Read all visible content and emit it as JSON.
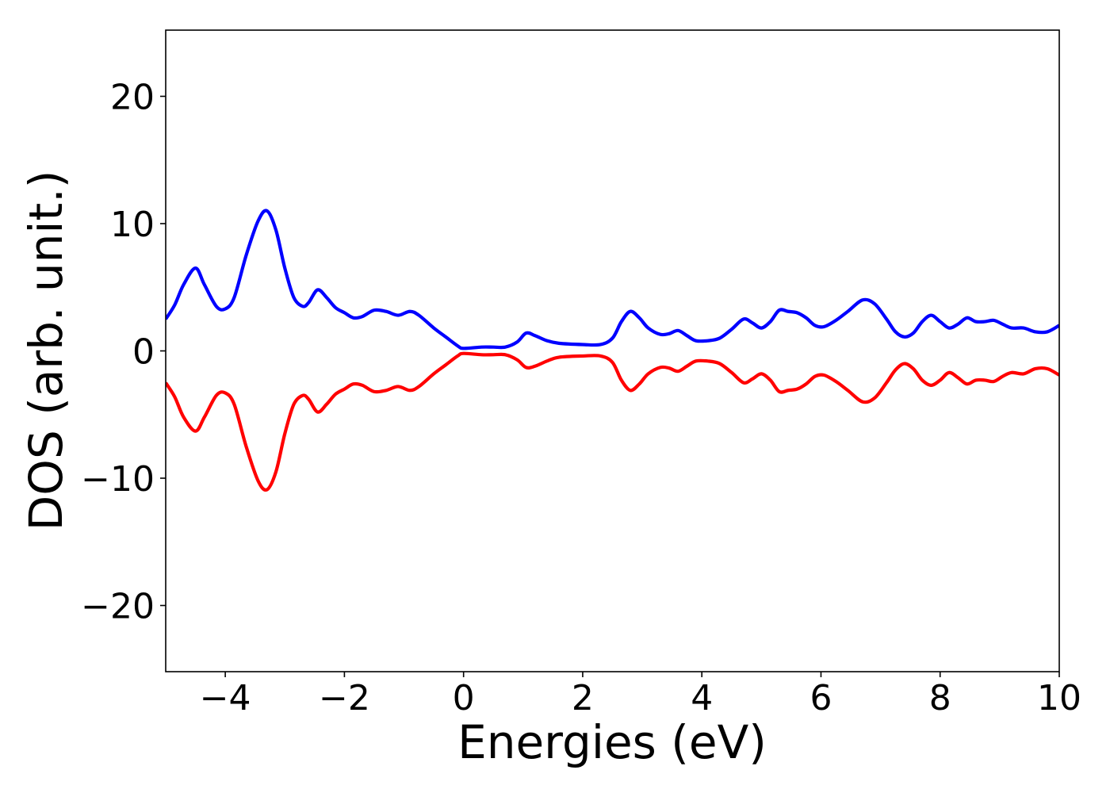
{
  "chart_data": {
    "type": "line",
    "xlabel": "Energies (eV)",
    "ylabel": "DOS (arb. unit.)",
    "xlim": [
      -5,
      10
    ],
    "ylim": [
      -25.2,
      25.2
    ],
    "grid": false,
    "xticks": [
      -4,
      -2,
      0,
      2,
      4,
      6,
      8,
      10
    ],
    "xtick_labels": [
      "−4",
      "−2",
      "0",
      "2",
      "4",
      "6",
      "8",
      "10"
    ],
    "yticks": [
      20,
      10,
      0,
      -10,
      -20
    ],
    "ytick_labels": [
      "20",
      "10",
      "0",
      "−10",
      "−20"
    ],
    "series": [
      {
        "color": "#0000ff",
        "points": [
          [
            -5,
            2.5
          ],
          [
            -4.85,
            3.6
          ],
          [
            -4.7,
            5.2
          ],
          [
            -4.5,
            6.5
          ],
          [
            -4.35,
            5.2
          ],
          [
            -4.15,
            3.5
          ],
          [
            -4.0,
            3.3
          ],
          [
            -3.85,
            4.2
          ],
          [
            -3.65,
            7.5
          ],
          [
            -3.45,
            10.2
          ],
          [
            -3.3,
            11.0
          ],
          [
            -3.15,
            9.5
          ],
          [
            -3.0,
            6.5
          ],
          [
            -2.85,
            4.2
          ],
          [
            -2.7,
            3.5
          ],
          [
            -2.6,
            3.8
          ],
          [
            -2.45,
            4.8
          ],
          [
            -2.3,
            4.2
          ],
          [
            -2.15,
            3.4
          ],
          [
            -2.0,
            3.0
          ],
          [
            -1.85,
            2.6
          ],
          [
            -1.7,
            2.7
          ],
          [
            -1.5,
            3.2
          ],
          [
            -1.3,
            3.1
          ],
          [
            -1.1,
            2.8
          ],
          [
            -0.9,
            3.1
          ],
          [
            -0.75,
            2.8
          ],
          [
            -0.5,
            1.8
          ],
          [
            -0.3,
            1.1
          ],
          [
            -0.1,
            0.4
          ],
          [
            0.0,
            0.2
          ],
          [
            0.3,
            0.3
          ],
          [
            0.5,
            0.3
          ],
          [
            0.7,
            0.3
          ],
          [
            0.9,
            0.7
          ],
          [
            1.05,
            1.4
          ],
          [
            1.2,
            1.2
          ],
          [
            1.4,
            0.8
          ],
          [
            1.6,
            0.6
          ],
          [
            2.0,
            0.5
          ],
          [
            2.3,
            0.5
          ],
          [
            2.5,
            1.0
          ],
          [
            2.65,
            2.3
          ],
          [
            2.8,
            3.1
          ],
          [
            2.95,
            2.6
          ],
          [
            3.1,
            1.8
          ],
          [
            3.3,
            1.3
          ],
          [
            3.45,
            1.35
          ],
          [
            3.6,
            1.6
          ],
          [
            3.75,
            1.2
          ],
          [
            3.9,
            0.8
          ],
          [
            4.1,
            0.8
          ],
          [
            4.3,
            1.0
          ],
          [
            4.5,
            1.7
          ],
          [
            4.7,
            2.5
          ],
          [
            4.85,
            2.2
          ],
          [
            5.0,
            1.8
          ],
          [
            5.15,
            2.3
          ],
          [
            5.3,
            3.2
          ],
          [
            5.45,
            3.1
          ],
          [
            5.6,
            3.0
          ],
          [
            5.75,
            2.6
          ],
          [
            5.9,
            2.0
          ],
          [
            6.05,
            1.9
          ],
          [
            6.25,
            2.4
          ],
          [
            6.45,
            3.1
          ],
          [
            6.7,
            4.0
          ],
          [
            6.9,
            3.7
          ],
          [
            7.1,
            2.5
          ],
          [
            7.25,
            1.5
          ],
          [
            7.4,
            1.1
          ],
          [
            7.55,
            1.4
          ],
          [
            7.7,
            2.3
          ],
          [
            7.85,
            2.8
          ],
          [
            8.0,
            2.3
          ],
          [
            8.15,
            1.8
          ],
          [
            8.3,
            2.1
          ],
          [
            8.45,
            2.6
          ],
          [
            8.6,
            2.3
          ],
          [
            8.75,
            2.3
          ],
          [
            8.9,
            2.4
          ],
          [
            9.05,
            2.1
          ],
          [
            9.2,
            1.8
          ],
          [
            9.4,
            1.8
          ],
          [
            9.6,
            1.5
          ],
          [
            9.8,
            1.5
          ],
          [
            10.0,
            2.0
          ]
        ]
      },
      {
        "color": "#ff0000",
        "points": [
          [
            -5,
            -2.5
          ],
          [
            -4.85,
            -3.6
          ],
          [
            -4.7,
            -5.2
          ],
          [
            -4.5,
            -6.3
          ],
          [
            -4.35,
            -5.2
          ],
          [
            -4.15,
            -3.5
          ],
          [
            -4.0,
            -3.3
          ],
          [
            -3.85,
            -4.2
          ],
          [
            -3.65,
            -7.5
          ],
          [
            -3.45,
            -10.2
          ],
          [
            -3.3,
            -10.9
          ],
          [
            -3.15,
            -9.5
          ],
          [
            -3.0,
            -6.5
          ],
          [
            -2.85,
            -4.2
          ],
          [
            -2.7,
            -3.5
          ],
          [
            -2.6,
            -3.8
          ],
          [
            -2.45,
            -4.8
          ],
          [
            -2.3,
            -4.2
          ],
          [
            -2.15,
            -3.4
          ],
          [
            -2.0,
            -3.0
          ],
          [
            -1.85,
            -2.6
          ],
          [
            -1.7,
            -2.7
          ],
          [
            -1.5,
            -3.2
          ],
          [
            -1.3,
            -3.1
          ],
          [
            -1.1,
            -2.8
          ],
          [
            -0.9,
            -3.1
          ],
          [
            -0.75,
            -2.8
          ],
          [
            -0.5,
            -1.8
          ],
          [
            -0.3,
            -1.1
          ],
          [
            -0.1,
            -0.4
          ],
          [
            0.0,
            -0.2
          ],
          [
            0.3,
            -0.3
          ],
          [
            0.5,
            -0.3
          ],
          [
            0.7,
            -0.3
          ],
          [
            0.9,
            -0.7
          ],
          [
            1.05,
            -1.3
          ],
          [
            1.2,
            -1.2
          ],
          [
            1.4,
            -0.8
          ],
          [
            1.6,
            -0.5
          ],
          [
            2.0,
            -0.4
          ],
          [
            2.3,
            -0.4
          ],
          [
            2.5,
            -0.9
          ],
          [
            2.65,
            -2.3
          ],
          [
            2.8,
            -3.1
          ],
          [
            2.95,
            -2.6
          ],
          [
            3.1,
            -1.8
          ],
          [
            3.3,
            -1.3
          ],
          [
            3.45,
            -1.35
          ],
          [
            3.6,
            -1.6
          ],
          [
            3.75,
            -1.2
          ],
          [
            3.9,
            -0.8
          ],
          [
            4.1,
            -0.8
          ],
          [
            4.3,
            -1.0
          ],
          [
            4.5,
            -1.7
          ],
          [
            4.7,
            -2.5
          ],
          [
            4.85,
            -2.2
          ],
          [
            5.0,
            -1.8
          ],
          [
            5.15,
            -2.3
          ],
          [
            5.3,
            -3.2
          ],
          [
            5.45,
            -3.1
          ],
          [
            5.6,
            -3.0
          ],
          [
            5.75,
            -2.6
          ],
          [
            5.9,
            -2.0
          ],
          [
            6.05,
            -1.9
          ],
          [
            6.25,
            -2.4
          ],
          [
            6.45,
            -3.1
          ],
          [
            6.7,
            -4.0
          ],
          [
            6.9,
            -3.7
          ],
          [
            7.1,
            -2.5
          ],
          [
            7.25,
            -1.5
          ],
          [
            7.4,
            -1.0
          ],
          [
            7.55,
            -1.4
          ],
          [
            7.7,
            -2.3
          ],
          [
            7.85,
            -2.7
          ],
          [
            8.0,
            -2.3
          ],
          [
            8.15,
            -1.7
          ],
          [
            8.3,
            -2.1
          ],
          [
            8.45,
            -2.6
          ],
          [
            8.6,
            -2.3
          ],
          [
            8.75,
            -2.3
          ],
          [
            8.9,
            -2.4
          ],
          [
            9.05,
            -2.0
          ],
          [
            9.2,
            -1.7
          ],
          [
            9.4,
            -1.8
          ],
          [
            9.6,
            -1.4
          ],
          [
            9.8,
            -1.4
          ],
          [
            10.0,
            -1.9
          ]
        ]
      }
    ]
  }
}
